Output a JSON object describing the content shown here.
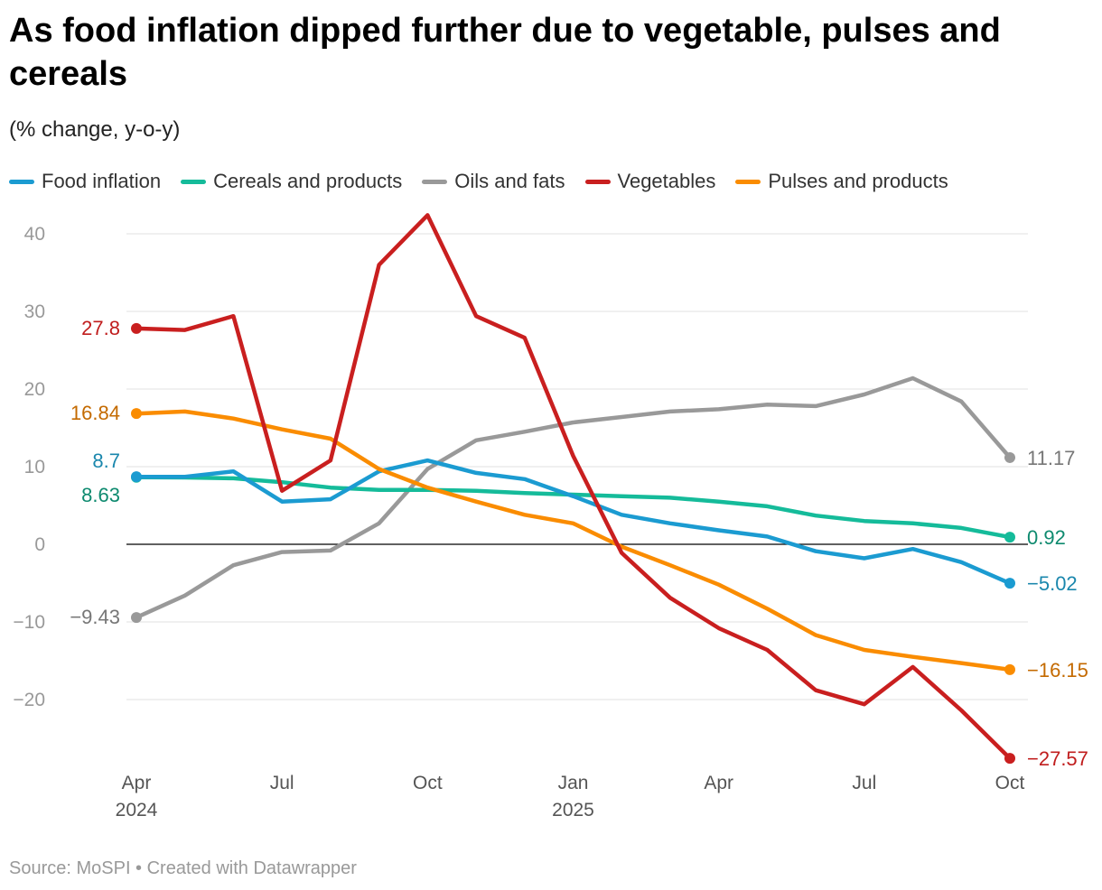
{
  "title": "As food inflation dipped further due to vegetable, pulses and cereals",
  "subtitle": "(% change, y-o-y)",
  "source": "Source: MoSPI • Created with Datawrapper",
  "chart_data": {
    "type": "line",
    "ylim": [
      -28,
      42
    ],
    "yticks": [
      -20,
      -10,
      0,
      10,
      20,
      30,
      40
    ],
    "grid": true,
    "legend_position": "top",
    "x": [
      "Apr 2024",
      "May 2024",
      "Jun 2024",
      "Jul 2024",
      "Aug 2024",
      "Sep 2024",
      "Oct 2024",
      "Nov 2024",
      "Dec 2024",
      "Jan 2025",
      "Feb 2025",
      "Mar 2025",
      "Apr 2025",
      "May 2025",
      "Jun 2025",
      "Jul 2025",
      "Aug 2025",
      "Sep 2025",
      "Oct 2025"
    ],
    "xticks": [
      {
        "index": 0,
        "label": "Apr",
        "year": "2024"
      },
      {
        "index": 3,
        "label": "Jul",
        "year": ""
      },
      {
        "index": 6,
        "label": "Oct",
        "year": ""
      },
      {
        "index": 9,
        "label": "Jan",
        "year": "2025"
      },
      {
        "index": 12,
        "label": "Apr",
        "year": ""
      },
      {
        "index": 15,
        "label": "Jul",
        "year": ""
      },
      {
        "index": 18,
        "label": "Oct",
        "year": ""
      }
    ],
    "series": [
      {
        "name": "Food inflation",
        "color": "#1b9bd1",
        "label_color": "#1a87ad",
        "values": [
          8.7,
          8.7,
          9.4,
          5.5,
          5.8,
          9.4,
          10.8,
          9.2,
          8.4,
          6.2,
          3.8,
          2.7,
          1.8,
          1.0,
          -0.9,
          -1.8,
          -0.6,
          -2.3,
          -5.02
        ],
        "start_label": "8.7",
        "end_label": "−5.02"
      },
      {
        "name": "Cereals and products",
        "color": "#15bb9a",
        "label_color": "#0e8a6f",
        "values": [
          8.63,
          8.6,
          8.5,
          8.0,
          7.3,
          7.0,
          7.0,
          6.9,
          6.6,
          6.4,
          6.2,
          6.0,
          5.5,
          4.9,
          3.7,
          3.0,
          2.7,
          2.1,
          0.92
        ],
        "start_label": "8.63",
        "end_label": "0.92"
      },
      {
        "name": "Oils and fats",
        "color": "#999999",
        "label_color": "#777777",
        "values": [
          -9.43,
          -6.6,
          -2.7,
          -1.0,
          -0.8,
          2.7,
          9.7,
          13.4,
          14.5,
          15.7,
          16.4,
          17.1,
          17.4,
          18.0,
          17.8,
          19.3,
          21.4,
          18.4,
          11.17
        ],
        "start_label": "−9.43",
        "end_label": "11.17"
      },
      {
        "name": "Vegetables",
        "color": "#c91f1f",
        "label_color": "#c01d1d",
        "values": [
          27.8,
          27.6,
          29.4,
          6.9,
          10.8,
          36.0,
          42.4,
          29.4,
          26.6,
          11.4,
          -1.1,
          -6.9,
          -10.8,
          -13.6,
          -18.8,
          -20.6,
          -15.8,
          -21.4,
          -27.57
        ],
        "start_label": "27.8",
        "end_label": "−27.57"
      },
      {
        "name": "Pulses and products",
        "color": "#fa8c00",
        "label_color": "#c46a00",
        "values": [
          16.84,
          17.1,
          16.2,
          14.8,
          13.6,
          9.7,
          7.3,
          5.5,
          3.8,
          2.7,
          -0.3,
          -2.7,
          -5.2,
          -8.3,
          -11.7,
          -13.6,
          -14.5,
          -15.3,
          -16.15
        ],
        "start_label": "16.84",
        "end_label": "−16.15"
      }
    ]
  }
}
